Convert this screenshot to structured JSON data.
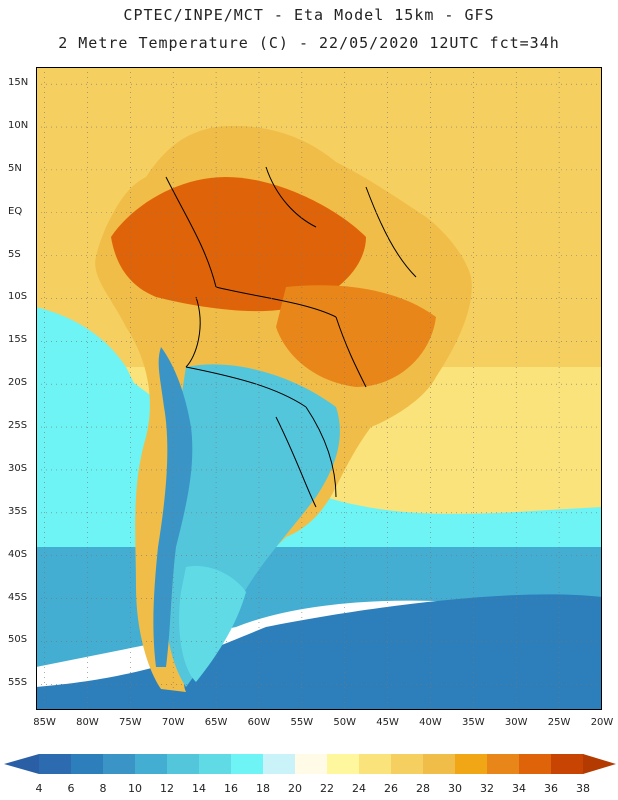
{
  "header": {
    "line1": "CPTEC/INPE/MCT -  Eta Model 15km - GFS",
    "line2": "2 Metre Temperature (C) - 22/05/2020 12UTC fct=34h"
  },
  "axes": {
    "lat_labels": [
      "15N",
      "10N",
      "5N",
      "EQ",
      "5S",
      "10S",
      "15S",
      "20S",
      "25S",
      "30S",
      "35S",
      "40S",
      "45S",
      "50S",
      "55S"
    ],
    "lat_values": [
      15,
      10,
      5,
      0,
      -5,
      -10,
      -15,
      -20,
      -25,
      -30,
      -35,
      -40,
      -45,
      -50,
      -55
    ],
    "lon_labels": [
      "85W",
      "80W",
      "75W",
      "70W",
      "65W",
      "60W",
      "55W",
      "50W",
      "45W",
      "40W",
      "35W",
      "30W",
      "25W",
      "20W"
    ],
    "lon_values": [
      -85,
      -80,
      -75,
      -70,
      -65,
      -60,
      -55,
      -50,
      -45,
      -40,
      -35,
      -30,
      -25,
      -20
    ],
    "lon_range": [
      -86,
      -20
    ],
    "lat_range": [
      -58,
      17
    ]
  },
  "colorbar": {
    "levels": [
      "4",
      "6",
      "8",
      "10",
      "12",
      "14",
      "16",
      "18",
      "20",
      "22",
      "24",
      "26",
      "28",
      "30",
      "32",
      "34",
      "36",
      "38"
    ],
    "colors": [
      "#2c6bb0",
      "#2d7fbc",
      "#3a95c6",
      "#43aed2",
      "#54c6dc",
      "#60dbe6",
      "#6ef4f4",
      "#c9f3f8",
      "#fffbe6",
      "#fff79e",
      "#fae37a",
      "#f5cf5f",
      "#f0bd48",
      "#f1a616",
      "#e98619",
      "#df6409",
      "#c84402"
    ],
    "low_color": "#2a5fa6",
    "high_color": "#b33b02"
  },
  "colors": {
    "ocean_tropical": "#f5cf5f",
    "ocean_subtropical": "#fae37a",
    "ocean_mid": "#6ef4f4",
    "ocean_south": "#43aed2",
    "ocean_far_south": "#2d7fbc",
    "amazon": "#df6409",
    "interior_hot": "#e98619",
    "brazil_warm": "#f0bd48",
    "south_cool": "#54c6dc",
    "andes_cold": "#3a95c6",
    "patagonia": "#60dbe6",
    "border": "#000000",
    "grid": "#777777"
  }
}
